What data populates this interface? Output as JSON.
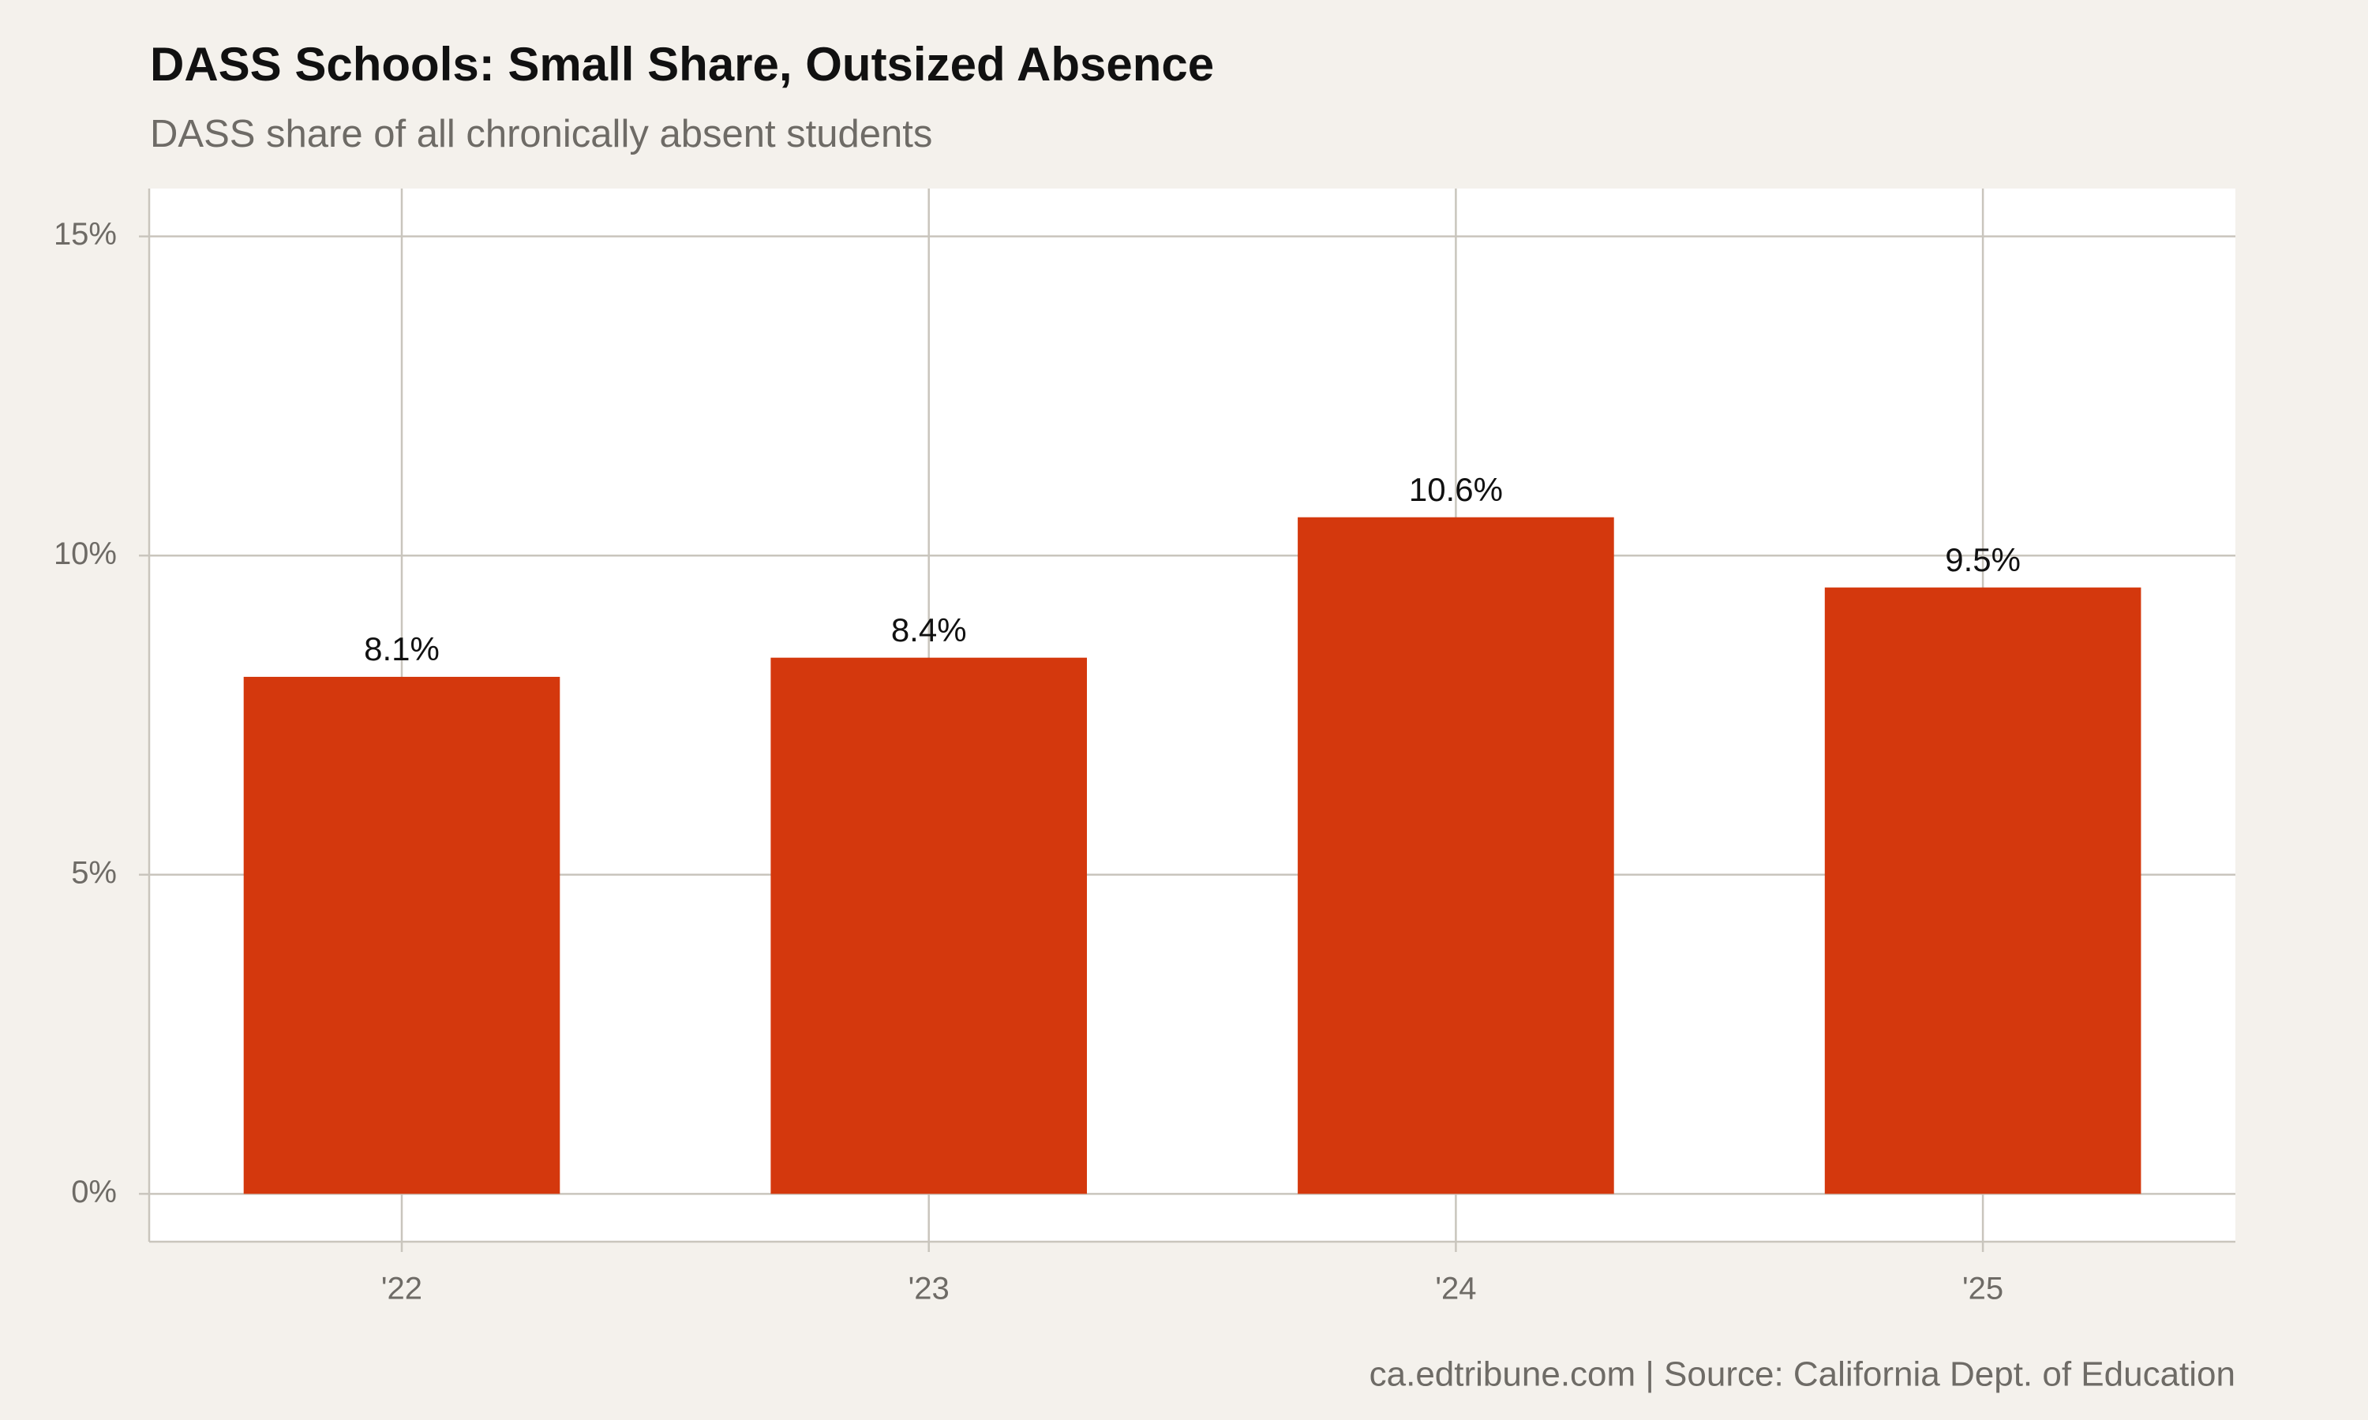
{
  "chart_data": {
    "type": "bar",
    "title": "DASS Schools: Small Share, Outsized Absence",
    "subtitle": "DASS share of all chronically absent students",
    "caption": "ca.edtribune.com | Source: California Dept. of Education",
    "categories": [
      "'22",
      "'23",
      "'24",
      "'25"
    ],
    "values": [
      8.1,
      8.4,
      10.6,
      9.5
    ],
    "value_labels": [
      "8.1%",
      "8.4%",
      "10.6%",
      "9.5%"
    ],
    "color": "#d4380d",
    "ylim": [
      -0.75,
      15.75
    ],
    "yticks": [
      {
        "value": 0,
        "label": "0%"
      },
      {
        "value": 5,
        "label": "5%"
      },
      {
        "value": 10,
        "label": "10%"
      },
      {
        "value": 15,
        "label": "15%"
      }
    ],
    "grid": true
  }
}
